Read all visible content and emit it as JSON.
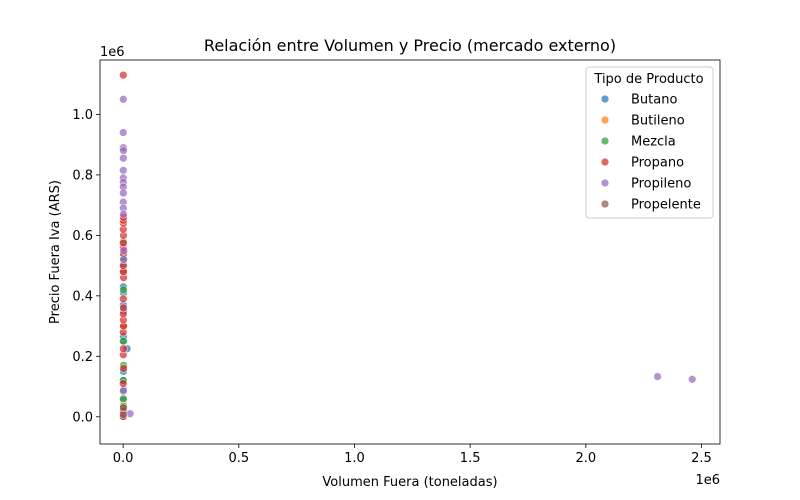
{
  "chart_data": {
    "type": "scatter",
    "title": "Relación entre Volumen y Precio (mercado externo)",
    "xlabel": "Volumen Fuera (toneladas)",
    "ylabel": "Precio Fuera Iva (ARS)",
    "x_multiplier": "1e6",
    "y_multiplier": "1e6",
    "xlim": [
      -100000,
      2580000
    ],
    "ylim": [
      -90000,
      1180000
    ],
    "x_ticks": [
      0,
      500000,
      1000000,
      1500000,
      2000000,
      2500000
    ],
    "x_tick_labels": [
      "0.0",
      "0.5",
      "1.0",
      "1.5",
      "2.0",
      "2.5"
    ],
    "y_ticks": [
      0,
      200000,
      400000,
      600000,
      800000,
      1000000
    ],
    "y_tick_labels": [
      "0.0",
      "0.2",
      "0.4",
      "0.6",
      "0.8",
      "1.0"
    ],
    "grid": false,
    "legend_position": "top-right",
    "legend_title": "Tipo de Producto",
    "series": [
      {
        "name": "Butano",
        "color": "#1f77b4",
        "points": [
          [
            0,
            1000
          ],
          [
            1500,
            20000
          ],
          [
            800,
            55000
          ],
          [
            2000,
            90000
          ],
          [
            500,
            120000
          ],
          [
            1200,
            150000
          ],
          [
            17000,
            225000
          ],
          [
            3000,
            250000
          ],
          [
            1000,
            265000
          ],
          [
            500,
            300000
          ],
          [
            2000,
            350000
          ],
          [
            800,
            370000
          ],
          [
            1500,
            410000
          ],
          [
            1000,
            430000
          ],
          [
            700,
            480000
          ],
          [
            2500,
            500000
          ],
          [
            1200,
            530000
          ]
        ]
      },
      {
        "name": "Butileno",
        "color": "#ff7f0e",
        "points": [
          [
            1200,
            40000
          ],
          [
            2500,
            300000
          ],
          [
            1800,
            480000
          ]
        ]
      },
      {
        "name": "Mezcla",
        "color": "#2ca02c",
        "points": [
          [
            500,
            15000
          ],
          [
            1500,
            35000
          ],
          [
            800,
            60000
          ],
          [
            1000,
            120000
          ],
          [
            2000,
            170000
          ],
          [
            700,
            250000
          ],
          [
            1500,
            420000
          ],
          [
            600,
            520000
          ],
          [
            1200,
            580000
          ]
        ]
      },
      {
        "name": "Propano",
        "color": "#d62728",
        "points": [
          [
            700,
            1130000
          ],
          [
            1000,
            1000
          ],
          [
            1500,
            20000
          ],
          [
            500,
            110000
          ],
          [
            2000,
            160000
          ],
          [
            800,
            205000
          ],
          [
            1200,
            225000
          ],
          [
            600,
            280000
          ],
          [
            1800,
            300000
          ],
          [
            1000,
            320000
          ],
          [
            900,
            340000
          ],
          [
            1500,
            360000
          ],
          [
            700,
            390000
          ],
          [
            2000,
            460000
          ],
          [
            1200,
            480000
          ],
          [
            500,
            500000
          ],
          [
            1500,
            540000
          ],
          [
            800,
            560000
          ],
          [
            1000,
            575000
          ],
          [
            1500,
            600000
          ],
          [
            700,
            620000
          ],
          [
            1200,
            640000
          ],
          [
            900,
            650000
          ],
          [
            1600,
            660000
          ]
        ]
      },
      {
        "name": "Propileno",
        "color": "#9467bd",
        "points": [
          [
            2310000,
            133000
          ],
          [
            2460000,
            124000
          ],
          [
            700,
            1050000
          ],
          [
            500,
            940000
          ],
          [
            900,
            890000
          ],
          [
            1200,
            880000
          ],
          [
            800,
            855000
          ],
          [
            700,
            815000
          ],
          [
            500,
            790000
          ],
          [
            1000,
            775000
          ],
          [
            600,
            760000
          ],
          [
            900,
            740000
          ],
          [
            500,
            710000
          ],
          [
            700,
            690000
          ],
          [
            1200,
            670000
          ],
          [
            30000,
            10000
          ],
          [
            800,
            85000
          ],
          [
            2500,
            520000
          ],
          [
            3000,
            550000
          ]
        ]
      },
      {
        "name": "Propelente",
        "color": "#8c564b",
        "points": [
          [
            800,
            8000
          ],
          [
            1500,
            30000
          ]
        ]
      }
    ]
  }
}
